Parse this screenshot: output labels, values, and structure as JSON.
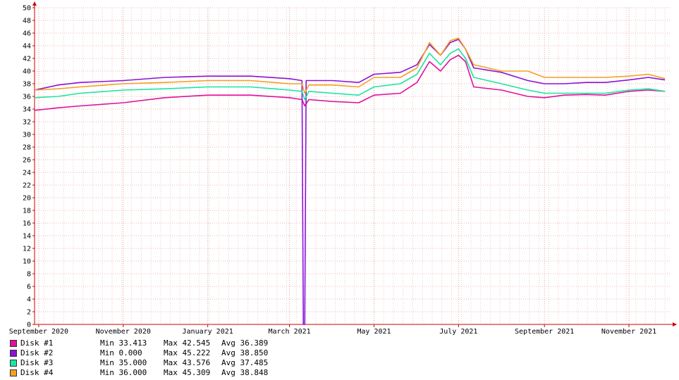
{
  "chart_data": {
    "type": "line",
    "title": "",
    "xlabel": "",
    "ylabel": "",
    "ylim": [
      0,
      50
    ],
    "y_step": 2,
    "grid": true,
    "x_range": [
      "2020-08-29",
      "2021-12-01"
    ],
    "x_ticks": [
      {
        "date": "2020-09-01",
        "label": "September 2020"
      },
      {
        "date": "2020-11-01",
        "label": "November 2020"
      },
      {
        "date": "2021-01-01",
        "label": "January 2021"
      },
      {
        "date": "2021-03-01",
        "label": "March 2021"
      },
      {
        "date": "2021-05-01",
        "label": "May 2021"
      },
      {
        "date": "2021-07-01",
        "label": "July 2021"
      },
      {
        "date": "2021-09-01",
        "label": "September 2021"
      },
      {
        "date": "2021-11-01",
        "label": "November 2021"
      }
    ],
    "series": [
      {
        "name": "Disk #1",
        "color": "#e0119d",
        "min": "33.413",
        "max": "42.545",
        "avg": "36.389",
        "points": [
          [
            "2020-08-29",
            33.8
          ],
          [
            "2020-09-15",
            34.2
          ],
          [
            "2020-10-01",
            34.5
          ],
          [
            "2020-11-01",
            35.0
          ],
          [
            "2020-12-01",
            35.8
          ],
          [
            "2021-01-01",
            36.2
          ],
          [
            "2021-02-01",
            36.2
          ],
          [
            "2021-03-01",
            35.8
          ],
          [
            "2021-03-10",
            35.5
          ],
          [
            "2021-03-12",
            34.5
          ],
          [
            "2021-03-15",
            35.5
          ],
          [
            "2021-04-01",
            35.2
          ],
          [
            "2021-04-20",
            35.0
          ],
          [
            "2021-05-01",
            36.2
          ],
          [
            "2021-05-20",
            36.5
          ],
          [
            "2021-06-01",
            38.2
          ],
          [
            "2021-06-10",
            41.5
          ],
          [
            "2021-06-18",
            40.0
          ],
          [
            "2021-06-25",
            41.8
          ],
          [
            "2021-07-01",
            42.5
          ],
          [
            "2021-07-06",
            41.5
          ],
          [
            "2021-07-12",
            37.5
          ],
          [
            "2021-08-01",
            37.0
          ],
          [
            "2021-08-20",
            36.0
          ],
          [
            "2021-09-01",
            35.8
          ],
          [
            "2021-09-15",
            36.2
          ],
          [
            "2021-10-01",
            36.3
          ],
          [
            "2021-10-15",
            36.2
          ],
          [
            "2021-11-01",
            36.8
          ],
          [
            "2021-11-15",
            37.0
          ],
          [
            "2021-11-27",
            36.8
          ]
        ]
      },
      {
        "name": "Disk #2",
        "color": "#8b12d6",
        "min": "0.000",
        "max": "45.222",
        "avg": "38.850",
        "points": [
          [
            "2020-08-29",
            37.0
          ],
          [
            "2020-09-15",
            37.8
          ],
          [
            "2020-10-01",
            38.2
          ],
          [
            "2020-11-01",
            38.5
          ],
          [
            "2020-12-01",
            39.0
          ],
          [
            "2021-01-01",
            39.2
          ],
          [
            "2021-02-01",
            39.2
          ],
          [
            "2021-03-01",
            38.8
          ],
          [
            "2021-03-10",
            38.5
          ],
          [
            "2021-03-11",
            0.0
          ],
          [
            "2021-03-12",
            0.0
          ],
          [
            "2021-03-13",
            38.5
          ],
          [
            "2021-04-01",
            38.5
          ],
          [
            "2021-04-20",
            38.2
          ],
          [
            "2021-05-01",
            39.5
          ],
          [
            "2021-05-20",
            39.8
          ],
          [
            "2021-06-01",
            41.0
          ],
          [
            "2021-06-10",
            44.2
          ],
          [
            "2021-06-18",
            42.5
          ],
          [
            "2021-06-25",
            44.5
          ],
          [
            "2021-07-01",
            45.0
          ],
          [
            "2021-07-06",
            43.5
          ],
          [
            "2021-07-12",
            40.5
          ],
          [
            "2021-08-01",
            39.8
          ],
          [
            "2021-08-20",
            38.5
          ],
          [
            "2021-09-01",
            38.0
          ],
          [
            "2021-09-15",
            38.0
          ],
          [
            "2021-10-01",
            38.2
          ],
          [
            "2021-10-15",
            38.2
          ],
          [
            "2021-11-01",
            38.6
          ],
          [
            "2021-11-15",
            39.0
          ],
          [
            "2021-11-27",
            38.6
          ]
        ]
      },
      {
        "name": "Disk #3",
        "color": "#19e6a0",
        "min": "35.000",
        "max": "43.576",
        "avg": "37.485",
        "points": [
          [
            "2020-08-29",
            35.8
          ],
          [
            "2020-09-15",
            36.0
          ],
          [
            "2020-10-01",
            36.5
          ],
          [
            "2020-11-01",
            37.0
          ],
          [
            "2020-12-01",
            37.2
          ],
          [
            "2021-01-01",
            37.5
          ],
          [
            "2021-02-01",
            37.5
          ],
          [
            "2021-03-01",
            37.0
          ],
          [
            "2021-03-10",
            36.8
          ],
          [
            "2021-03-12",
            35.5
          ],
          [
            "2021-03-15",
            36.8
          ],
          [
            "2021-04-01",
            36.5
          ],
          [
            "2021-04-20",
            36.2
          ],
          [
            "2021-05-01",
            37.5
          ],
          [
            "2021-05-20",
            38.0
          ],
          [
            "2021-06-01",
            39.5
          ],
          [
            "2021-06-10",
            42.8
          ],
          [
            "2021-06-18",
            41.0
          ],
          [
            "2021-06-25",
            42.8
          ],
          [
            "2021-07-01",
            43.5
          ],
          [
            "2021-07-06",
            42.0
          ],
          [
            "2021-07-12",
            39.0
          ],
          [
            "2021-08-01",
            38.0
          ],
          [
            "2021-08-20",
            37.0
          ],
          [
            "2021-09-01",
            36.5
          ],
          [
            "2021-09-15",
            36.5
          ],
          [
            "2021-10-01",
            36.5
          ],
          [
            "2021-10-15",
            36.5
          ],
          [
            "2021-11-01",
            37.0
          ],
          [
            "2021-11-15",
            37.2
          ],
          [
            "2021-11-27",
            36.8
          ]
        ]
      },
      {
        "name": "Disk #4",
        "color": "#f4a020",
        "min": "36.000",
        "max": "45.309",
        "avg": "38.848",
        "points": [
          [
            "2020-08-29",
            37.0
          ],
          [
            "2020-09-15",
            37.2
          ],
          [
            "2020-10-01",
            37.5
          ],
          [
            "2020-11-01",
            38.0
          ],
          [
            "2020-12-01",
            38.2
          ],
          [
            "2021-01-01",
            38.5
          ],
          [
            "2021-02-01",
            38.5
          ],
          [
            "2021-03-01",
            38.0
          ],
          [
            "2021-03-10",
            38.0
          ],
          [
            "2021-03-12",
            36.5
          ],
          [
            "2021-03-15",
            37.8
          ],
          [
            "2021-04-01",
            37.8
          ],
          [
            "2021-04-20",
            37.5
          ],
          [
            "2021-05-01",
            39.0
          ],
          [
            "2021-05-20",
            39.0
          ],
          [
            "2021-06-01",
            40.5
          ],
          [
            "2021-06-10",
            44.5
          ],
          [
            "2021-06-18",
            42.5
          ],
          [
            "2021-06-25",
            44.8
          ],
          [
            "2021-07-01",
            45.2
          ],
          [
            "2021-07-06",
            43.5
          ],
          [
            "2021-07-12",
            41.0
          ],
          [
            "2021-08-01",
            40.0
          ],
          [
            "2021-08-20",
            40.0
          ],
          [
            "2021-09-01",
            39.0
          ],
          [
            "2021-09-15",
            39.0
          ],
          [
            "2021-10-01",
            39.0
          ],
          [
            "2021-10-15",
            39.0
          ],
          [
            "2021-11-01",
            39.2
          ],
          [
            "2021-11-15",
            39.5
          ],
          [
            "2021-11-27",
            38.8
          ]
        ]
      }
    ]
  },
  "legend": {
    "min_label": "Min",
    "max_label": "Max",
    "avg_label": "Avg"
  }
}
